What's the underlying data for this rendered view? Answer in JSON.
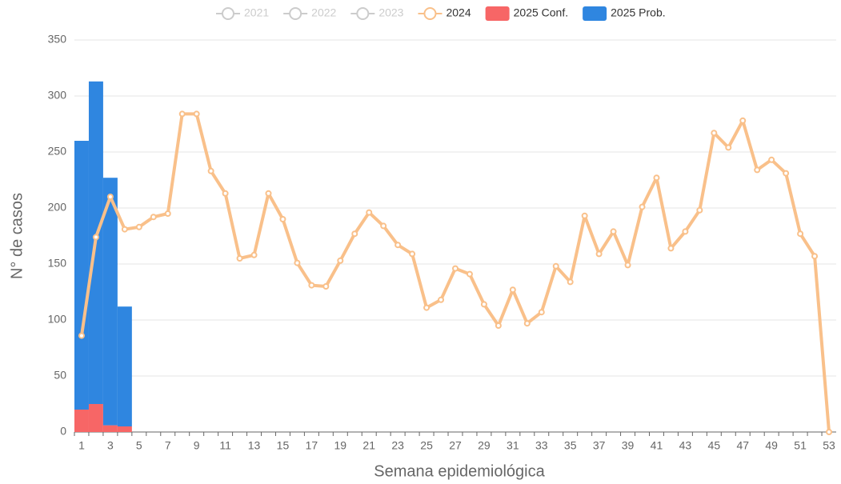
{
  "chart_data": {
    "type": "bar-line",
    "x_label": "Semana epidemiológica",
    "y_label": "N° de casos",
    "categories": [
      1,
      null,
      3,
      null,
      5,
      null,
      7,
      null,
      9,
      null,
      11,
      null,
      13,
      null,
      15,
      null,
      17,
      null,
      19,
      null,
      21,
      null,
      23,
      null,
      25,
      null,
      27,
      null,
      29,
      null,
      31,
      null,
      33,
      null,
      35,
      null,
      37,
      null,
      39,
      null,
      41,
      null,
      43,
      null,
      45,
      null,
      47,
      null,
      49,
      null,
      51,
      null,
      53
    ],
    "ylim": [
      0,
      350
    ],
    "yticks": [
      0,
      50,
      100,
      150,
      200,
      250,
      300,
      350
    ],
    "grid": true,
    "legend": "top",
    "inactive_series": [
      {
        "name": "2021",
        "color": "#cccccc"
      },
      {
        "name": "2022",
        "color": "#cccccc"
      },
      {
        "name": "2023",
        "color": "#cccccc"
      }
    ],
    "series": [
      {
        "name": "2024",
        "type": "line",
        "color": "#f9c08a",
        "values": [
          86,
          174,
          210,
          181,
          183,
          192,
          195,
          284,
          284,
          233,
          213,
          155,
          158,
          213,
          190,
          151,
          131,
          130,
          153,
          177,
          196,
          184,
          167,
          159,
          111,
          118,
          146,
          141,
          114,
          95,
          127,
          97,
          107,
          148,
          134,
          193,
          159,
          179,
          149,
          201,
          227,
          164,
          179,
          198,
          267,
          254,
          278,
          234,
          243,
          231,
          177,
          157,
          0
        ]
      },
      {
        "name": "2025 Conf.",
        "type": "bar",
        "color": "#f76666",
        "values": [
          20,
          25,
          6,
          5,
          null,
          null,
          null,
          null,
          null,
          null,
          null,
          null,
          null,
          null,
          null,
          null,
          null,
          null,
          null,
          null,
          null,
          null,
          null,
          null,
          null,
          null,
          null,
          null,
          null,
          null,
          null,
          null,
          null,
          null,
          null,
          null,
          null,
          null,
          null,
          null,
          null,
          null,
          null,
          null,
          null,
          null,
          null,
          null,
          null,
          null,
          null,
          null,
          null
        ]
      },
      {
        "name": "2025 Prob.",
        "type": "bar",
        "color": "#2f86e0",
        "values": [
          240,
          288,
          221,
          107,
          null,
          null,
          null,
          null,
          null,
          null,
          null,
          null,
          null,
          null,
          null,
          null,
          null,
          null,
          null,
          null,
          null,
          null,
          null,
          null,
          null,
          null,
          null,
          null,
          null,
          null,
          null,
          null,
          null,
          null,
          null,
          null,
          null,
          null,
          null,
          null,
          null,
          null,
          null,
          null,
          null,
          null,
          null,
          null,
          null,
          null,
          null,
          null,
          null
        ]
      }
    ]
  }
}
